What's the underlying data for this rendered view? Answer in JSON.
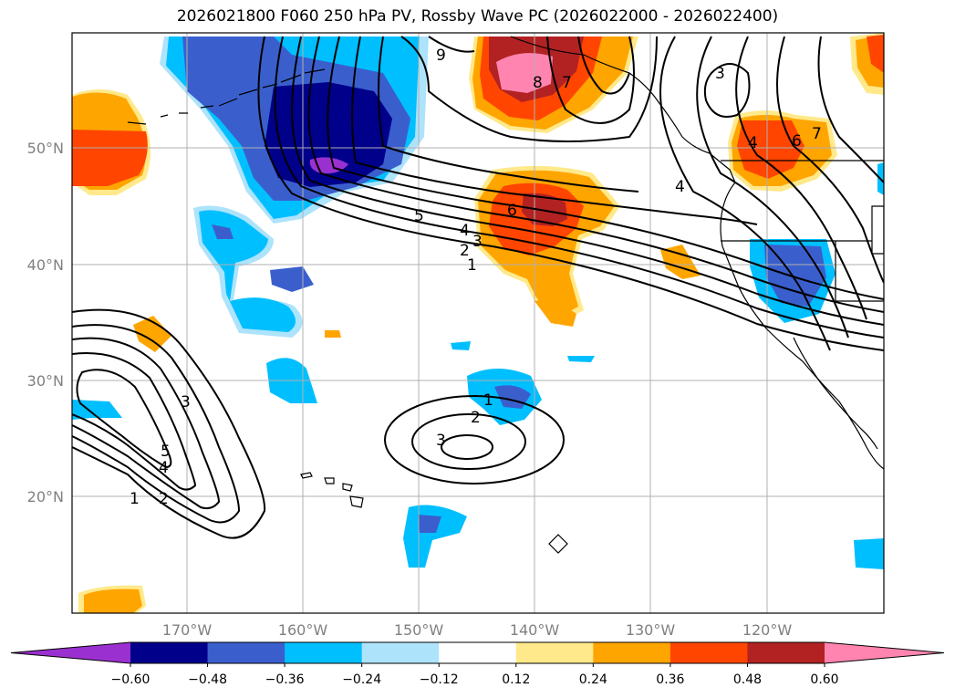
{
  "title": "2026021800 F060 250 hPa PV, Rossby Wave PC (2026022000 - 2026022400)",
  "colorbar": {
    "ticks": [
      "−0.60",
      "−0.48",
      "−0.36",
      "−0.24",
      "−0.12",
      "0.12",
      "0.24",
      "0.36",
      "0.48",
      "0.60"
    ],
    "colors": [
      "#9b30d0",
      "#00008b",
      "#3a5fcd",
      "#00bfff",
      "#ade3fb",
      "#ffffff",
      "#ffe98a",
      "#ffa500",
      "#ff4500",
      "#b22222",
      "#ff85b0"
    ]
  },
  "axes": {
    "lat_labels": [
      "50°N",
      "40°N",
      "30°N",
      "20°N"
    ],
    "lon_labels": [
      "170°W",
      "160°W",
      "150°W",
      "140°W",
      "130°W",
      "120°W"
    ]
  },
  "contour_labels": [
    "9",
    "8",
    "7",
    "3",
    "6",
    "7",
    "4",
    "5",
    "6",
    "4",
    "3",
    "2",
    "1",
    "4",
    "1",
    "2",
    "3",
    "3",
    "5",
    "4",
    "1",
    "2"
  ]
}
